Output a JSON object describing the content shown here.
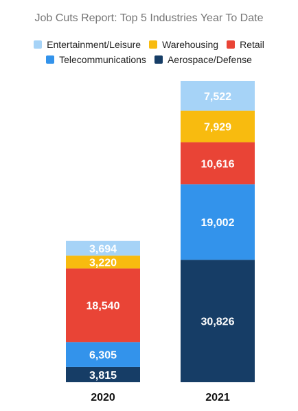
{
  "chart_data": {
    "type": "bar",
    "stacked": true,
    "title": "Job Cuts Report: Top 5 Industries Year To Date",
    "categories": [
      "2020",
      "2021"
    ],
    "series": [
      {
        "name": "Aerospace/Defense",
        "color": "#163d66",
        "values": [
          3815,
          30826
        ]
      },
      {
        "name": "Telecommunications",
        "color": "#3393eb",
        "values": [
          6305,
          19002
        ]
      },
      {
        "name": "Retail",
        "color": "#e94436",
        "values": [
          18540,
          10616
        ]
      },
      {
        "name": "Warehousing",
        "color": "#f8bb0f",
        "values": [
          3220,
          7929
        ]
      },
      {
        "name": "Entertainment/Leisure",
        "color": "#a6d3f7",
        "values": [
          3694,
          7522
        ]
      }
    ],
    "value_labels": {
      "2020": [
        "3,815",
        "6,305",
        "18,540",
        "3,220",
        "3,694"
      ],
      "2021": [
        "30,826",
        "19,002",
        "10,616",
        "7,929",
        "7,522"
      ]
    },
    "legend": {
      "placement": "top",
      "rows": [
        [
          "Entertainment/Leisure",
          "Warehousing",
          "Retail"
        ],
        [
          "Telecommunications",
          "Aerospace/Defense"
        ]
      ]
    },
    "xlabel": "",
    "ylabel": "",
    "grid": false
  }
}
